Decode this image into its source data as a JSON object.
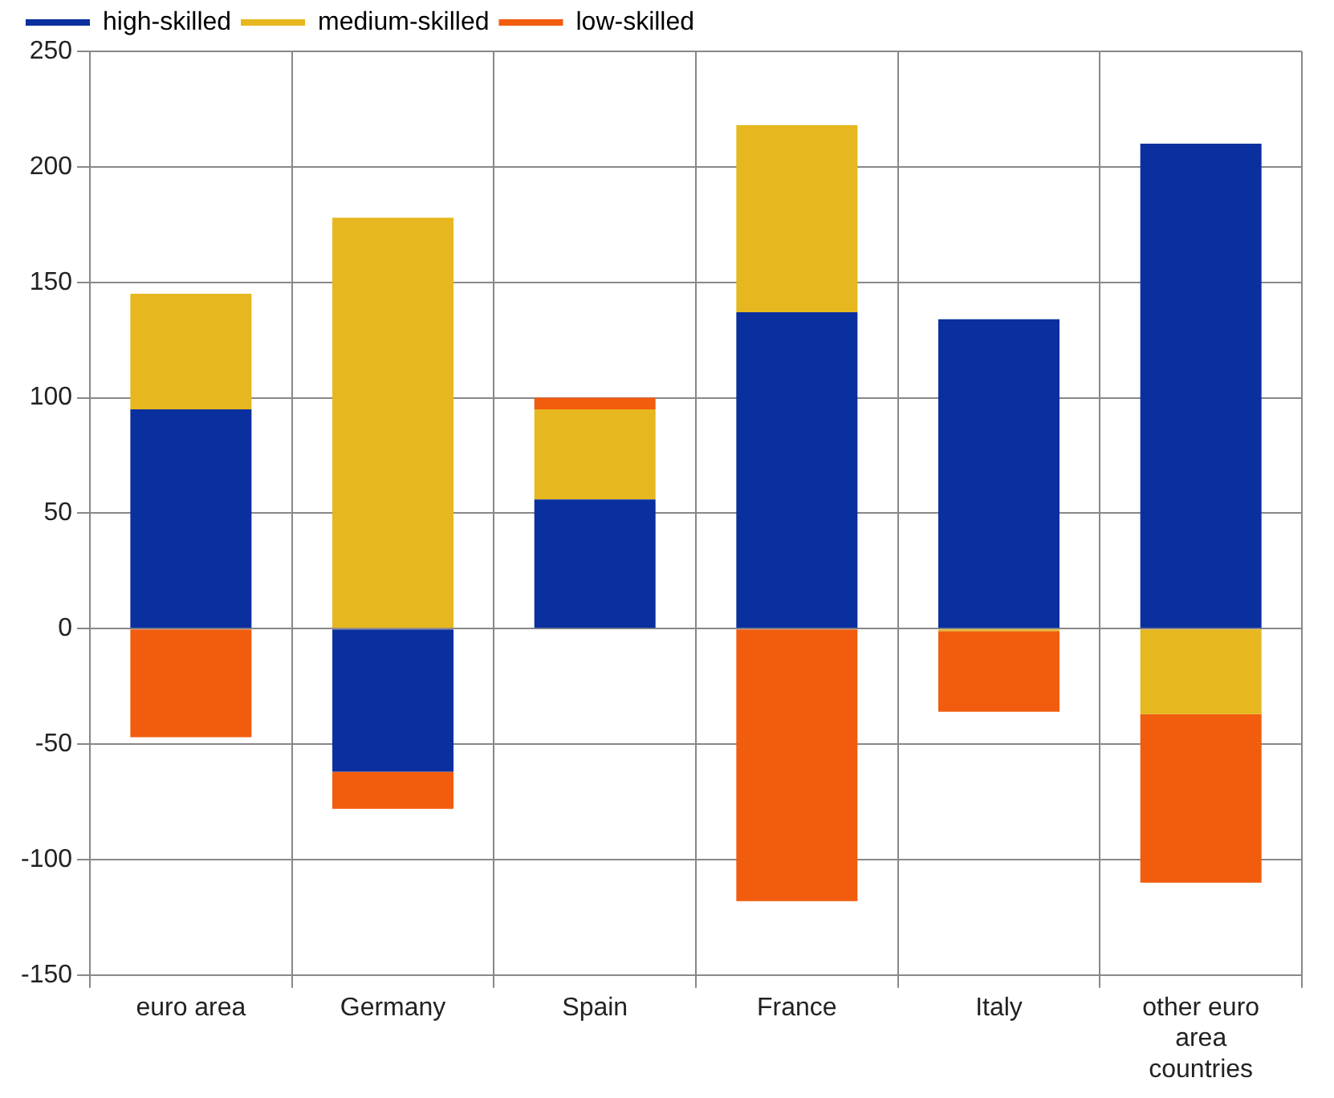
{
  "chart_data": {
    "type": "bar",
    "stacked": true,
    "categories": [
      "euro area",
      "Germany",
      "Spain",
      "France",
      "Italy",
      "other euro area countries"
    ],
    "series": [
      {
        "name": "high-skilled",
        "color": "#0a2f9e",
        "values": [
          95,
          -62,
          56,
          137,
          134,
          210
        ]
      },
      {
        "name": "medium-skilled",
        "color": "#e6b71e",
        "values": [
          50,
          178,
          39,
          81,
          -1,
          -37
        ]
      },
      {
        "name": "low-skilled",
        "color": "#f25c0f",
        "values": [
          -47,
          -16,
          5,
          -118,
          -35,
          -73
        ]
      }
    ],
    "ylim": [
      -150,
      250
    ],
    "yticks": [
      -150,
      -100,
      -50,
      0,
      50,
      100,
      150,
      200,
      250
    ],
    "grid": true,
    "legend": "top left"
  }
}
